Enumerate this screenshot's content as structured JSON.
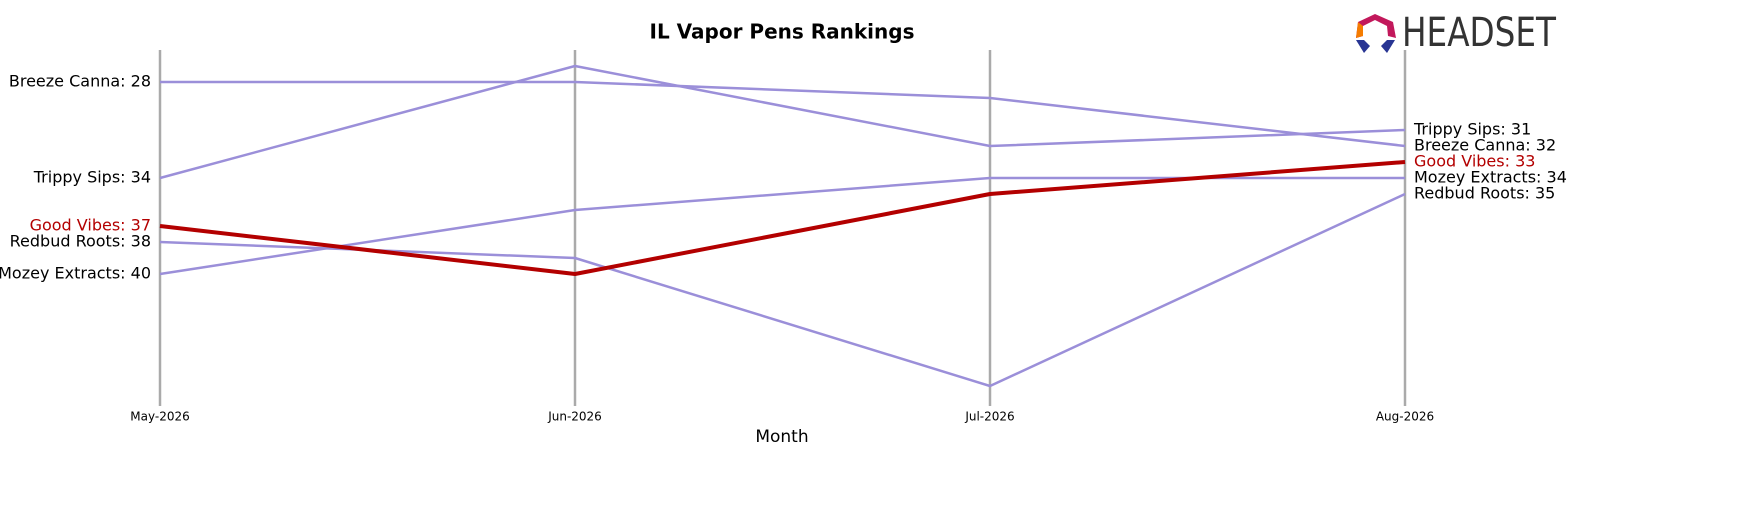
{
  "chart_data": {
    "type": "bump",
    "title": "IL Vapor Pens Rankings",
    "logo": "HEADSET",
    "x_label": "Month",
    "categories": [
      "May-2026",
      "Jun-2026",
      "Jul-2026",
      "Aug-2026"
    ],
    "ylim": [
      26,
      48
    ],
    "y_inverted": true,
    "series": [
      {
        "name": "Breeze Canna",
        "color": "#9b8fd9",
        "values": [
          28,
          28,
          29,
          32
        ],
        "value_labels": [
          "Breeze Canna: 28",
          null,
          null,
          "Breeze Canna: 32"
        ]
      },
      {
        "name": "Trippy Sips",
        "color": "#9b8fd9",
        "values": [
          34,
          27,
          32,
          31
        ],
        "value_labels": [
          "Trippy Sips: 34",
          null,
          null,
          "Trippy Sips: 31"
        ]
      },
      {
        "name": "Redbud Roots",
        "color": "#9b8fd9",
        "values": [
          38,
          39,
          47,
          35
        ],
        "value_labels": [
          "Redbud Roots: 38",
          null,
          null,
          "Redbud Roots: 35"
        ]
      },
      {
        "name": "Mozey Extracts",
        "color": "#9b8fd9",
        "values": [
          40,
          36,
          34,
          34
        ],
        "value_labels": [
          "Mozey Extracts: 40",
          null,
          null,
          "Mozey Extracts: 34"
        ]
      },
      {
        "name": "Good Vibes",
        "color": "#b30000",
        "highlight": true,
        "values": [
          37,
          40,
          35,
          33
        ],
        "value_labels": [
          "Good Vibes: 37",
          null,
          null,
          "Good Vibes: 33"
        ]
      }
    ]
  }
}
